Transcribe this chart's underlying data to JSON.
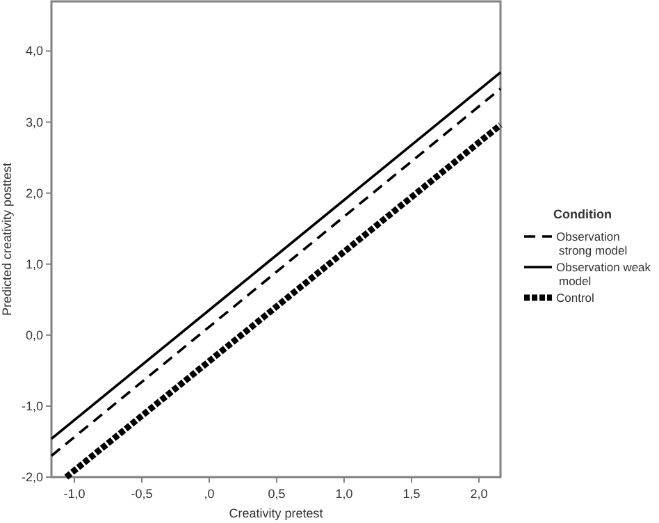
{
  "chart_data": {
    "type": "line",
    "xlabel": "Creativity pretest",
    "ylabel": "Predicted creativity posttest",
    "legend_title": "Condition",
    "legend": "right",
    "xlim": [
      -1.17,
      2.16
    ],
    "ylim": [
      -2.0,
      4.7
    ],
    "xticks": [
      {
        "value": -1,
        "label": "-1,0"
      },
      {
        "value": -0.5,
        "label": "-0,5"
      },
      {
        "value": 0,
        "label": ",0"
      },
      {
        "value": 0.5,
        "label": "0,5"
      },
      {
        "value": 1,
        "label": "1,0"
      },
      {
        "value": 1.5,
        "label": "1,5"
      },
      {
        "value": 2,
        "label": "2,0"
      }
    ],
    "yticks": [
      {
        "value": -2,
        "label": "-2,0"
      },
      {
        "value": -1,
        "label": "-1,0"
      },
      {
        "value": 0,
        "label": "0,0"
      },
      {
        "value": 1,
        "label": "1,0"
      },
      {
        "value": 2,
        "label": "2,0"
      },
      {
        "value": 3,
        "label": "3,0"
      },
      {
        "value": 4,
        "label": "4,0"
      }
    ],
    "series": [
      {
        "name": "Observation strong model",
        "color": "#000000",
        "line_style": "dashed",
        "x": [
          -1.17,
          2.16
        ],
        "values": [
          -1.7,
          3.47
        ]
      },
      {
        "name": "Observation weak model",
        "color": "#000000",
        "line_style": "solid",
        "x": [
          -1.17,
          2.16
        ],
        "values": [
          -1.46,
          3.7
        ]
      },
      {
        "name": "Control",
        "color": "#000000",
        "line_style": "dotted",
        "x": [
          -1.06,
          2.16
        ],
        "values": [
          -2.0,
          2.96
        ]
      }
    ]
  }
}
